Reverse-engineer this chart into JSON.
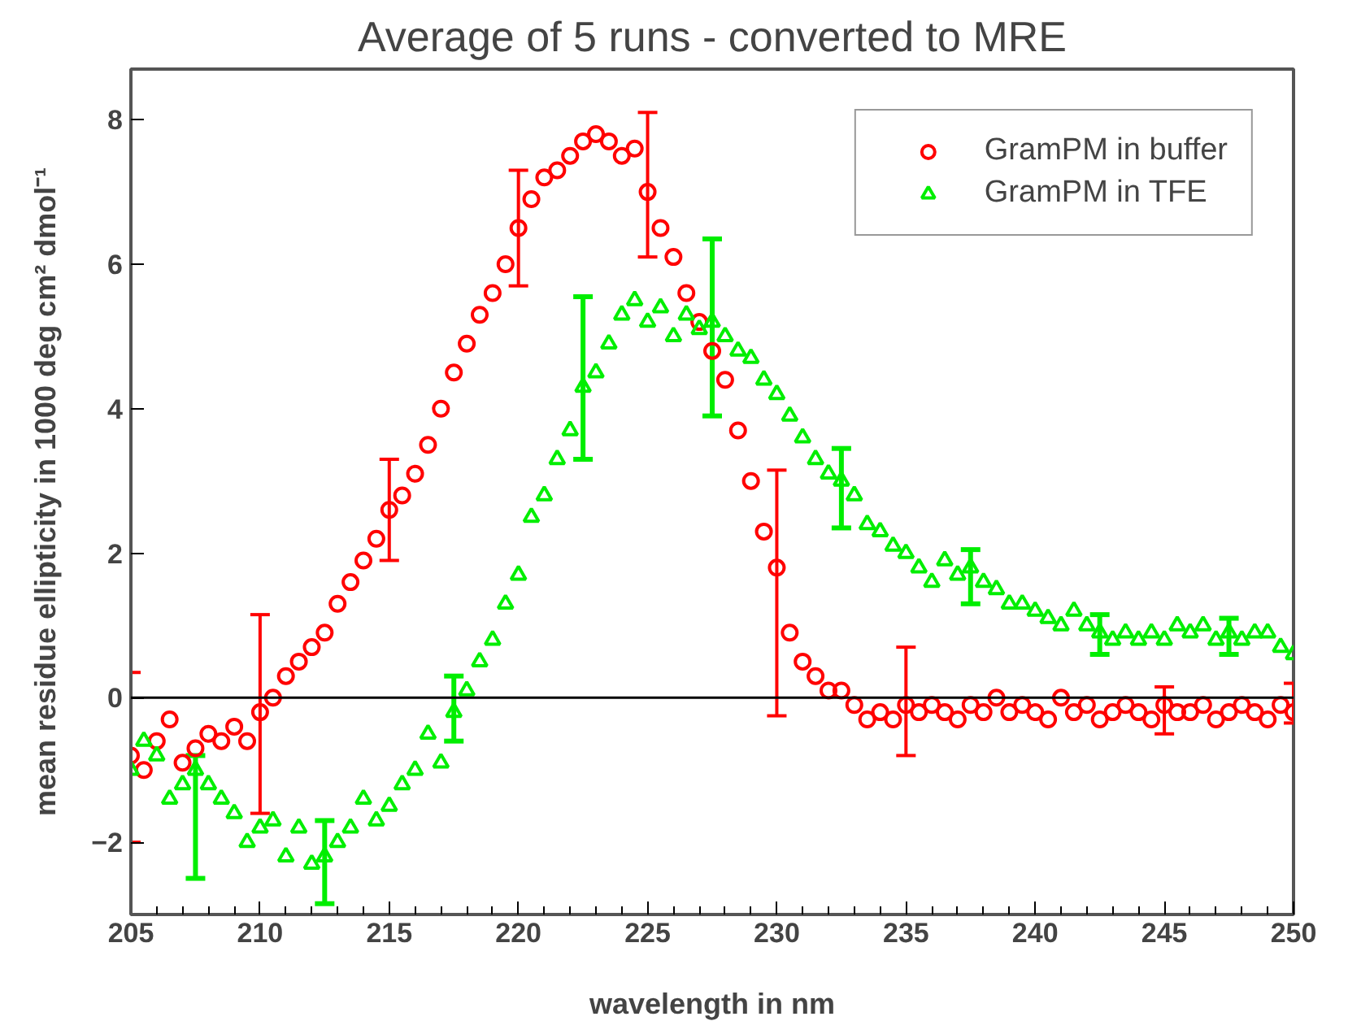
{
  "chart_data": {
    "type": "scatter",
    "title": "Average of 5 runs - converted to MRE",
    "xlabel": "wavelength in nm",
    "ylabel": "mean residue ellipticity in 1000 deg cm² dmol⁻¹",
    "x": [
      205,
      205.5,
      206,
      206.5,
      207,
      207.5,
      208,
      208.5,
      209,
      209.5,
      210,
      210.5,
      211,
      211.5,
      212,
      212.5,
      213,
      213.5,
      214,
      214.5,
      215,
      215.5,
      216,
      216.5,
      217,
      217.5,
      218,
      218.5,
      219,
      219.5,
      220,
      220.5,
      221,
      221.5,
      222,
      222.5,
      223,
      223.5,
      224,
      224.5,
      225,
      225.5,
      226,
      226.5,
      227,
      227.5,
      228,
      228.5,
      229,
      229.5,
      230,
      230.5,
      231,
      231.5,
      232,
      232.5,
      233,
      233.5,
      234,
      234.5,
      235,
      235.5,
      236,
      236.5,
      237,
      237.5,
      238,
      238.5,
      239,
      239.5,
      240,
      240.5,
      241,
      241.5,
      242,
      242.5,
      243,
      243.5,
      244,
      244.5,
      245,
      245.5,
      246,
      246.5,
      247,
      247.5,
      248,
      248.5,
      249,
      249.5,
      250
    ],
    "series": [
      {
        "name": "GramPM in buffer",
        "color": "#ff0000",
        "marker": "circle",
        "values": [
          -0.8,
          -1.0,
          -0.6,
          -0.3,
          -0.9,
          -0.7,
          -0.5,
          -0.6,
          -0.4,
          -0.6,
          -0.2,
          0.0,
          0.3,
          0.5,
          0.7,
          0.9,
          1.3,
          1.6,
          1.9,
          2.2,
          2.6,
          2.8,
          3.1,
          3.5,
          4.0,
          4.5,
          4.9,
          5.3,
          5.6,
          6.0,
          6.5,
          6.9,
          7.2,
          7.3,
          7.5,
          7.7,
          7.8,
          7.7,
          7.5,
          7.6,
          7.0,
          6.5,
          6.1,
          5.6,
          5.2,
          4.8,
          4.4,
          3.7,
          3.0,
          2.3,
          1.8,
          0.9,
          0.5,
          0.3,
          0.1,
          0.1,
          -0.1,
          -0.3,
          -0.2,
          -0.3,
          -0.1,
          -0.2,
          -0.1,
          -0.2,
          -0.3,
          -0.1,
          -0.2,
          0.0,
          -0.2,
          -0.1,
          -0.2,
          -0.3,
          0.0,
          -0.2,
          -0.1,
          -0.3,
          -0.2,
          -0.1,
          -0.2,
          -0.3,
          -0.1,
          -0.2,
          -0.2,
          -0.1,
          -0.3,
          -0.2,
          -0.1,
          -0.2,
          -0.3,
          -0.1,
          -0.2
        ],
        "errors": [
          [
            -2.0,
            0.35
          ],
          null,
          null,
          null,
          null,
          null,
          null,
          null,
          null,
          null,
          [
            -1.6,
            1.15
          ],
          null,
          null,
          null,
          null,
          null,
          null,
          null,
          null,
          null,
          [
            1.9,
            3.3
          ],
          null,
          null,
          null,
          null,
          null,
          null,
          null,
          null,
          null,
          [
            5.7,
            7.3
          ],
          null,
          null,
          null,
          null,
          null,
          null,
          null,
          null,
          null,
          [
            6.1,
            8.1
          ],
          null,
          null,
          null,
          null,
          null,
          null,
          null,
          null,
          null,
          [
            -0.25,
            3.15
          ],
          null,
          null,
          null,
          null,
          null,
          null,
          null,
          null,
          null,
          [
            -0.8,
            0.7
          ],
          null,
          null,
          null,
          null,
          null,
          null,
          null,
          null,
          null,
          null,
          null,
          null,
          null,
          null,
          null,
          null,
          null,
          null,
          null,
          [
            -0.5,
            0.15
          ],
          null,
          null,
          null,
          null,
          null,
          null,
          null,
          null,
          null,
          [
            -0.35,
            0.2
          ]
        ]
      },
      {
        "name": "GramPM in TFE",
        "color": "#00ee00",
        "marker": "triangle",
        "values": [
          -1.0,
          -0.6,
          -0.8,
          -1.4,
          -1.2,
          -1.0,
          -1.2,
          -1.4,
          -1.6,
          -2.0,
          -1.8,
          -1.7,
          -2.2,
          -1.8,
          -2.3,
          -2.2,
          -2.0,
          -1.8,
          -1.4,
          -1.7,
          -1.5,
          -1.2,
          -1.0,
          -0.5,
          -0.9,
          -0.2,
          0.1,
          0.5,
          0.8,
          1.3,
          1.7,
          2.5,
          2.8,
          3.3,
          3.7,
          4.3,
          4.5,
          4.9,
          5.3,
          5.5,
          5.2,
          5.4,
          5.0,
          5.3,
          5.1,
          5.2,
          5.0,
          4.8,
          4.7,
          4.4,
          4.2,
          3.9,
          3.6,
          3.3,
          3.1,
          3.0,
          2.8,
          2.4,
          2.3,
          2.1,
          2.0,
          1.8,
          1.6,
          1.9,
          1.7,
          1.8,
          1.6,
          1.5,
          1.3,
          1.3,
          1.2,
          1.1,
          1.0,
          1.2,
          1.0,
          0.9,
          0.8,
          0.9,
          0.8,
          0.9,
          0.8,
          1.0,
          0.9,
          1.0,
          0.8,
          0.9,
          0.8,
          0.9,
          0.9,
          0.7,
          0.6
        ],
        "errors": [
          null,
          null,
          null,
          null,
          null,
          [
            -2.5,
            -0.8
          ],
          null,
          null,
          null,
          null,
          null,
          null,
          null,
          null,
          null,
          [
            -2.85,
            -1.7
          ],
          null,
          null,
          null,
          null,
          null,
          null,
          null,
          null,
          null,
          [
            -0.6,
            0.3
          ],
          null,
          null,
          null,
          null,
          null,
          null,
          null,
          null,
          null,
          [
            3.3,
            5.55
          ],
          null,
          null,
          null,
          null,
          null,
          null,
          null,
          null,
          null,
          [
            3.9,
            6.35
          ],
          null,
          null,
          null,
          null,
          null,
          null,
          null,
          null,
          null,
          [
            2.35,
            3.45
          ],
          null,
          null,
          null,
          null,
          null,
          null,
          null,
          null,
          null,
          [
            1.3,
            2.05
          ],
          null,
          null,
          null,
          null,
          null,
          null,
          null,
          null,
          null,
          [
            0.6,
            1.15
          ],
          null,
          null,
          null,
          null,
          null,
          null,
          null,
          null,
          null,
          [
            0.6,
            1.1
          ],
          null,
          null,
          null,
          null,
          null
        ]
      }
    ],
    "xlim": [
      205,
      250
    ],
    "xticks": [
      205,
      210,
      215,
      220,
      225,
      230,
      235,
      240,
      245,
      250
    ],
    "ylim": [
      -3,
      8.7
    ],
    "yticks": [
      -2,
      0,
      2,
      4,
      6,
      8
    ],
    "ref_lines": [
      {
        "axis": "y",
        "value": 0,
        "color": "#000000"
      }
    ],
    "grid": false,
    "legend": "top right"
  }
}
